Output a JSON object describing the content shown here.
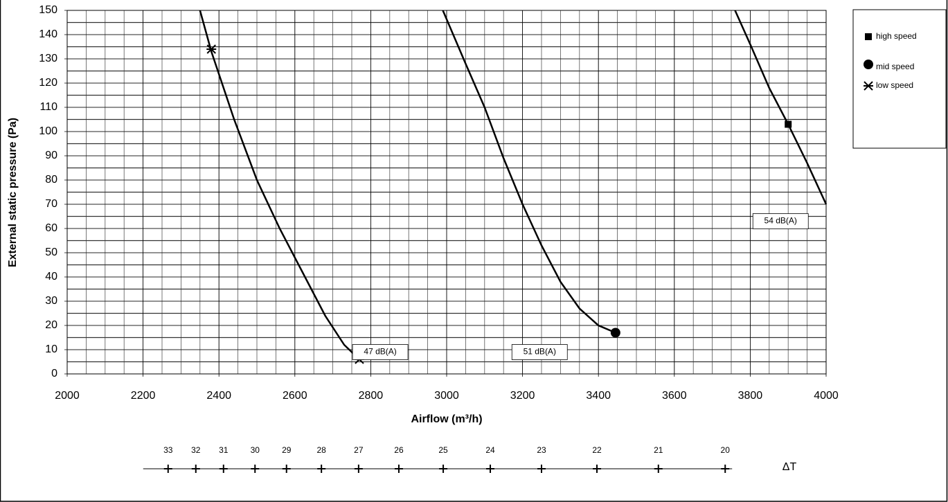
{
  "chart_data": {
    "type": "line",
    "xlabel": "Airflow (m³/h)",
    "ylabel": "External static pressure (Pa)",
    "xlim": [
      2000,
      4000
    ],
    "ylim": [
      0,
      150
    ],
    "xticks": [
      2000,
      2200,
      2400,
      2600,
      2800,
      3000,
      3200,
      3400,
      3600,
      3800,
      4000
    ],
    "yticks": [
      0,
      10,
      20,
      30,
      40,
      50,
      60,
      70,
      80,
      90,
      100,
      110,
      120,
      130,
      140,
      150
    ],
    "grid": true,
    "series": [
      {
        "name": "low speed",
        "color": "#000000",
        "marker": "x",
        "x": [
          2350,
          2380,
          2440,
          2500,
          2560,
          2620,
          2680,
          2730,
          2770
        ],
        "values": [
          150,
          133,
          105,
          80,
          60,
          42,
          24,
          12,
          6
        ],
        "marker_x": [
          2380,
          2770
        ],
        "marker_y": [
          134,
          6
        ],
        "label": "47 dB(A)"
      },
      {
        "name": "mid speed",
        "color": "#000000",
        "marker": "circle",
        "x": [
          2990,
          3050,
          3100,
          3150,
          3200,
          3250,
          3300,
          3350,
          3400,
          3445
        ],
        "values": [
          150,
          128,
          110,
          89,
          70,
          53,
          38,
          27,
          20,
          17
        ],
        "marker_x": [
          3445
        ],
        "marker_y": [
          17
        ],
        "label": "51 dB(A)"
      },
      {
        "name": "high speed",
        "color": "#000000",
        "marker": "square",
        "x": [
          3760,
          3800,
          3850,
          3900,
          3950,
          4000
        ],
        "values": [
          150,
          136,
          118,
          103,
          87,
          70
        ],
        "marker_x": [
          3900
        ],
        "marker_y": [
          103
        ],
        "label": "54 dB(A)"
      }
    ],
    "delta_t": {
      "label": "ΔT",
      "values": [
        33,
        32,
        31,
        30,
        29,
        28,
        27,
        26,
        25,
        24,
        23,
        22,
        21,
        20
      ],
      "airflow": [
        2266,
        2339,
        2412,
        2495,
        2578,
        2670,
        2768,
        2874,
        2991,
        3115,
        3250,
        3396,
        3558,
        3734
      ]
    }
  }
}
